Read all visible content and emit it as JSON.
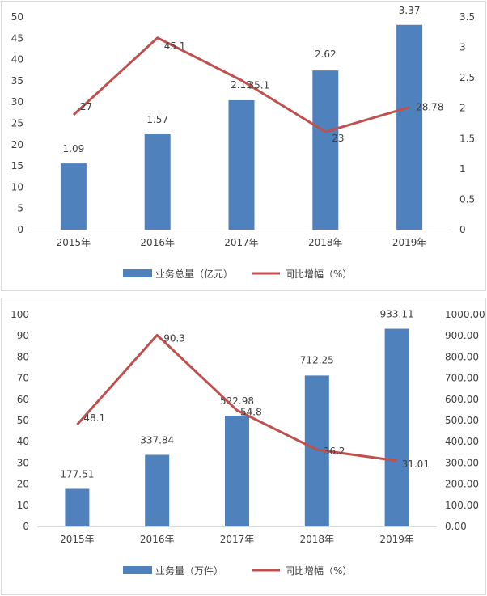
{
  "chart_data": [
    {
      "type": "bar+line",
      "categories": [
        "2015年",
        "2016年",
        "2017年",
        "2018年",
        "2019年"
      ],
      "series": [
        {
          "name": "业务总量（亿元）",
          "type": "bar",
          "axis": "right",
          "values": [
            1.09,
            1.57,
            2.13,
            2.62,
            3.37
          ],
          "labels": [
            "1.09",
            "1.57",
            "2.13",
            "2.62",
            "3.37"
          ]
        },
        {
          "name": "同比增幅（%）",
          "type": "line",
          "axis": "left",
          "values": [
            27,
            45.1,
            35.1,
            23,
            28.78
          ],
          "labels": [
            "27",
            "45.1",
            "35.1",
            "23",
            "28.78"
          ]
        }
      ],
      "left_axis": {
        "min": 0,
        "max": 50,
        "ticks": [
          "0",
          "5",
          "10",
          "15",
          "20",
          "25",
          "30",
          "35",
          "40",
          "45",
          "50"
        ]
      },
      "right_axis": {
        "min": 0,
        "max": 3.5,
        "ticks": [
          "0",
          "0.5",
          "1",
          "1.5",
          "2",
          "2.5",
          "3",
          "3.5"
        ]
      },
      "legend_position": "bottom",
      "grid": false,
      "colors": {
        "bar": "#4f81bd",
        "line": "#c0504d"
      }
    },
    {
      "type": "bar+line",
      "categories": [
        "2015年",
        "2016年",
        "2017年",
        "2018年",
        "2019年"
      ],
      "series": [
        {
          "name": "业务量（万件）",
          "type": "bar",
          "axis": "right",
          "values": [
            177.51,
            337.84,
            522.98,
            712.25,
            933.11
          ],
          "labels": [
            "177.51",
            "337.84",
            "522.98",
            "712.25",
            "933.11"
          ]
        },
        {
          "name": "同比增幅（%）",
          "type": "line",
          "axis": "left",
          "values": [
            48.1,
            90.3,
            54.8,
            36.2,
            31.01
          ],
          "labels": [
            "48.1",
            "90.3",
            "54.8",
            "36.2",
            "31.01"
          ]
        }
      ],
      "left_axis": {
        "min": 0,
        "max": 100,
        "ticks": [
          "0",
          "10",
          "20",
          "30",
          "40",
          "50",
          "60",
          "70",
          "80",
          "90",
          "100"
        ]
      },
      "right_axis": {
        "min": 0,
        "max": 1000,
        "ticks": [
          "0.00",
          "100.00",
          "200.00",
          "300.00",
          "400.00",
          "500.00",
          "600.00",
          "700.00",
          "800.00",
          "900.00",
          "1000.00"
        ]
      },
      "legend_position": "bottom",
      "grid": false,
      "colors": {
        "bar": "#4f81bd",
        "line": "#c0504d"
      }
    }
  ]
}
